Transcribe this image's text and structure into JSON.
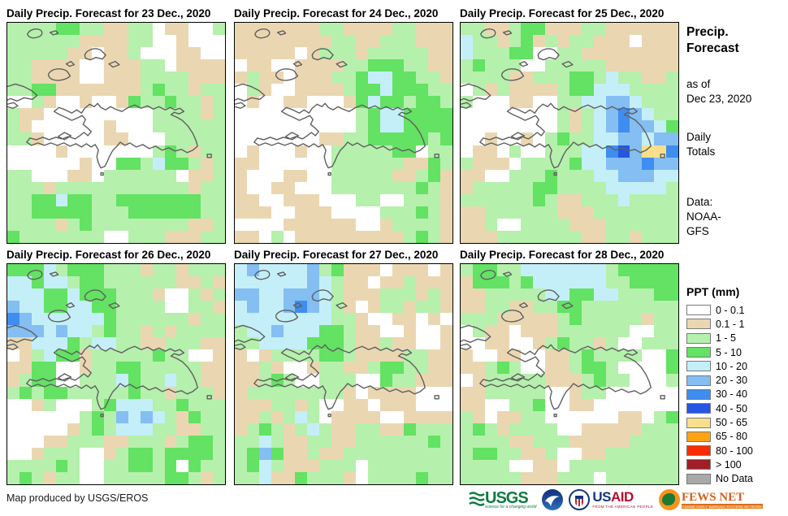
{
  "panels": [
    {
      "title": "Daily Precip. Forecast for 23 Dec., 2020",
      "grid": [
        "LLLLGGLLTTLLWTTWWL",
        "LLLLLLTTTTLLWWTWWW",
        "LLLLLTTWTTLWWWTTWW",
        "LLTTTTWWTTTLLWTTTT",
        "LLTTTTWWTTTLLLLTTT",
        "LLGGTTTTTTTLGLLTLL",
        "WWLTWWTWWTGLLGLLTL",
        "LTTWWWWWWWWWLLLLTL",
        "LTWWWWWWTWWWLLLLLL",
        "LLTWWWWWTTWWWLLLLL",
        "WWWWTWWWWWWWLGLTLL",
        "WWWWWWTWWGGLCGGLTL",
        "LLWWWTTWLLLLLLWTTL",
        "LLLTLLLLLLLLLLLTLL",
        "LLGGCGGLLGGGGGGGLL",
        "LLGGGGGLLLGGGGGGLL",
        "LLLLTLGLLLLLLLLTTL",
        "GLLLLLLLWWLLLTTTLL"
      ]
    },
    {
      "title": "Daily Precip. Forecast for 24 Dec., 2020",
      "grid": [
        "TTTTTTTLLTTTTLLTTT",
        "TTTTTTTTLLTTLLLTTT",
        "TTTTTWTLLLTLLLLLTT",
        "WTTWWTTTTLLGGGLLTT",
        "TLTTWTTTLLGCCGGLLT",
        "WLTWWTTTTLGGCGGGLL",
        "WTWWTTWWWTGCGGLGGL",
        "WWWWWWWWWWLGCCGGGG",
        "WWWWWWWWWWLGCCGGGG",
        "WWWWWWWTTLLGGGGGLG",
        "WTWWWTWWLLLLLGGWLL",
        "TTWWWWWWLLLLLLTTGL",
        "TWWWTTWWLLLLLTTLGT",
        "TWWTTWWWLLLLLLLGLT",
        "TTWWTTTWWWLLWWLLLT",
        "TTTWWTTTWWWWLLLGLT",
        "WWWWTTTTTTWWTLLLLT",
        "TTWLWTTTTTTTTTLGLT"
      ]
    },
    {
      "title": "Daily Precip. Forecast for 25 Dec., 2020",
      "grid": [
        "LLTTLGGTTTLLTTTTTT",
        "CLLTLGTLTLLTTTWTTT",
        "CLLLGGWWLLTTTTTTTT",
        "LGLLLWWLLLLLTTTTTT",
        "LLLLTTLLLGGLCLLTTL",
        "WLTLTTTTLGGCCCLLLL",
        "LWWWTTWWLLCCBBCLLL",
        "WWWWWWWWLTLCBUBCLL",
        "WWWWWWWWLTLCBUBBCG",
        "WWTWWTWLGLLCCBBCBB",
        "WTTWLWWLLLCCUDBYYU",
        "LTTTWLLLLGCCBBBUBB",
        "TTWWLLLGLLLCCBBBCC",
        "TLLLLLGGLLLLCCCCCL",
        "LLLLLLGLTTLLLCLLLL",
        "TTLLLLLLTTTLLLLLLL",
        "TTLWWLLLLTTTLLLLLL",
        "TTTLLLLLLLTTLLTLLL"
      ]
    },
    {
      "title": "Daily Precip. Forecast for 26 Dec., 2020",
      "grid": [
        "GGGCLGGGLLLTLLTLLL",
        "CCGCCLGGLLLLLLTTLT",
        "CCCGGCGGGLLLTWWLTL",
        "BCCGGCCGGLLLLWWLLT",
        "UBCCCCCCGLLLLLLTLL",
        "BBBCBCCLGLLTLTLLLL",
        "TTCCCGLCCLLTTLLLTT",
        "WTLCGGTLLLLLGLLWWT",
        "TTGGWWTLLGGLLLLLTT",
        "TLGGWWLLLCGLLCLLTT",
        "LGLGGLLLLLGLLTLLLT",
        "WWTLWWWLGCCCLLGLLL",
        "WWWWWWLGLBCBCLTGLL",
        "WWWWWTLGLCCCLLTTLL",
        "WWWTTLLLTTLLLTLGGL",
        "WWTLLLWWTLGGLGGGGL",
        "LLLLGLWWLLGGLGWGLL",
        "LGLTLLWWLLLLLGGLTL"
      ]
    },
    {
      "title": "Daily Precip. Forecast for 27 Dec., 2020",
      "grid": [
        "CBCCCCBLGTTTWTTTWT",
        "CCCCCCBCLTTWTTLTTT",
        "BBCCBBBCLTTTLLLTLT",
        "CBCCBUBCLTWTLLTLLT",
        "CCCCCCCCLLTWWTTWTW",
        "LCCBCCCGGLTTWWTWWT",
        "LLCCCCGGGLTTLTTWWT",
        "TWTLLLLGGLTTTTLLTT",
        "TTLTWWTLLTTLGGLLTT",
        "TTLGLWWLLLWWGLLTTT",
        "TLLLLLLLLTWTTTTWWW",
        "TTTLLTLWWTTWTTTWWW",
        "TTLTLCLWTTTTWWTTTT",
        "TLGLTLCLTTLLTTGLLL",
        "LLCLTTLLTTLLLLLLGL",
        "LGBGTTLTTLLLLLLLLL",
        "LGCLTTTLLLWLLLLLLL",
        "LLCTTGLLLTWLLLLGLL"
      ]
    },
    {
      "title": "Daily Precip. Forecast for 28 Dec., 2020",
      "grid": [
        "LGGLLCCCCCCCLGGGGG",
        "TGGGLGCCCCCCLLGGGG",
        "TTLLLLLCCGGCCLLLGG",
        "TTLLTTLLGGLLLLLLLL",
        "LLLTTTTTLGLLLLLTLL",
        "WLTTWTTTLLLLLLWWLL",
        "WWTTWWTLGLLTLWWLLL",
        "TWWTTWWTTLGLLLLWWG",
        "TTLGLWWTTLGGLWWWWG",
        "WTLLLLLTTTLGLLWWWL",
        "TTLLLLLWWTLLWWWWWW",
        "TTWWLLGWWTTWWWWWWW",
        "LTWTTLLWWWWWWTTWLG",
        "LGLTLLLLWWTTTTTLLL",
        "LLLLTTLLLTTTTTLLLL",
        "LGGLLTTLWWTTLLLLLL",
        "LLLLWWTTWLLLLLLLLL",
        "LLLLLTTTLLLWLLLLLL"
      ]
    }
  ],
  "palette": {
    "W": "#FFFFFF",
    "T": "#EAD7B2",
    "L": "#B5F0AC",
    "G": "#63E263",
    "C": "#C4EFF8",
    "B": "#84BEF2",
    "U": "#3F8DF0",
    "D": "#2456E2",
    "Y": "#F8DF8B",
    "O": "#FFA313",
    "R": "#FA2C05",
    "M": "#9E2026",
    "N": "#A9A9A9"
  },
  "sidebar": {
    "title_line1": "Precip.",
    "title_line2": "Forecast",
    "asof_line1": "as of",
    "asof_line2": "Dec 23, 2020",
    "totals_line1": "Daily",
    "totals_line2": "Totals",
    "source_line1": "Data:",
    "source_line2": "NOAA-",
    "source_line3": "GFS"
  },
  "legend": {
    "title": "PPT (mm)",
    "items": [
      {
        "label": "0 - 0.1",
        "color": "#FFFFFF"
      },
      {
        "label": "0.1 - 1",
        "color": "#EAD7B2"
      },
      {
        "label": "1 - 5",
        "color": "#B5F0AC"
      },
      {
        "label": "5 - 10",
        "color": "#63E263"
      },
      {
        "label": "10 - 20",
        "color": "#C4EFF8"
      },
      {
        "label": "20 - 30",
        "color": "#84BEF2"
      },
      {
        "label": "30 - 40",
        "color": "#3F8DF0"
      },
      {
        "label": "40 - 50",
        "color": "#2456E2"
      },
      {
        "label": "50 - 65",
        "color": "#F8DF8B"
      },
      {
        "label": "65 - 80",
        "color": "#FFA313"
      },
      {
        "label": "80 - 100",
        "color": "#FA2C05"
      },
      {
        "label": "> 100",
        "color": "#9E2026"
      },
      {
        "label": "No Data",
        "color": "#A9A9A9"
      }
    ]
  },
  "footer": {
    "credit": "Map produced by USGS/EROS",
    "usgs_text": "USGS",
    "usgs_tagline": "science for a changing world",
    "usaid_us": "US",
    "usaid_aid": "AID",
    "usaid_tagline": "FROM THE AMERICAN PEOPLE",
    "fews_text": "FEWS NET",
    "fews_tagline": "FAMINE EARLY WARNING SYSTEMS NETWORK"
  }
}
